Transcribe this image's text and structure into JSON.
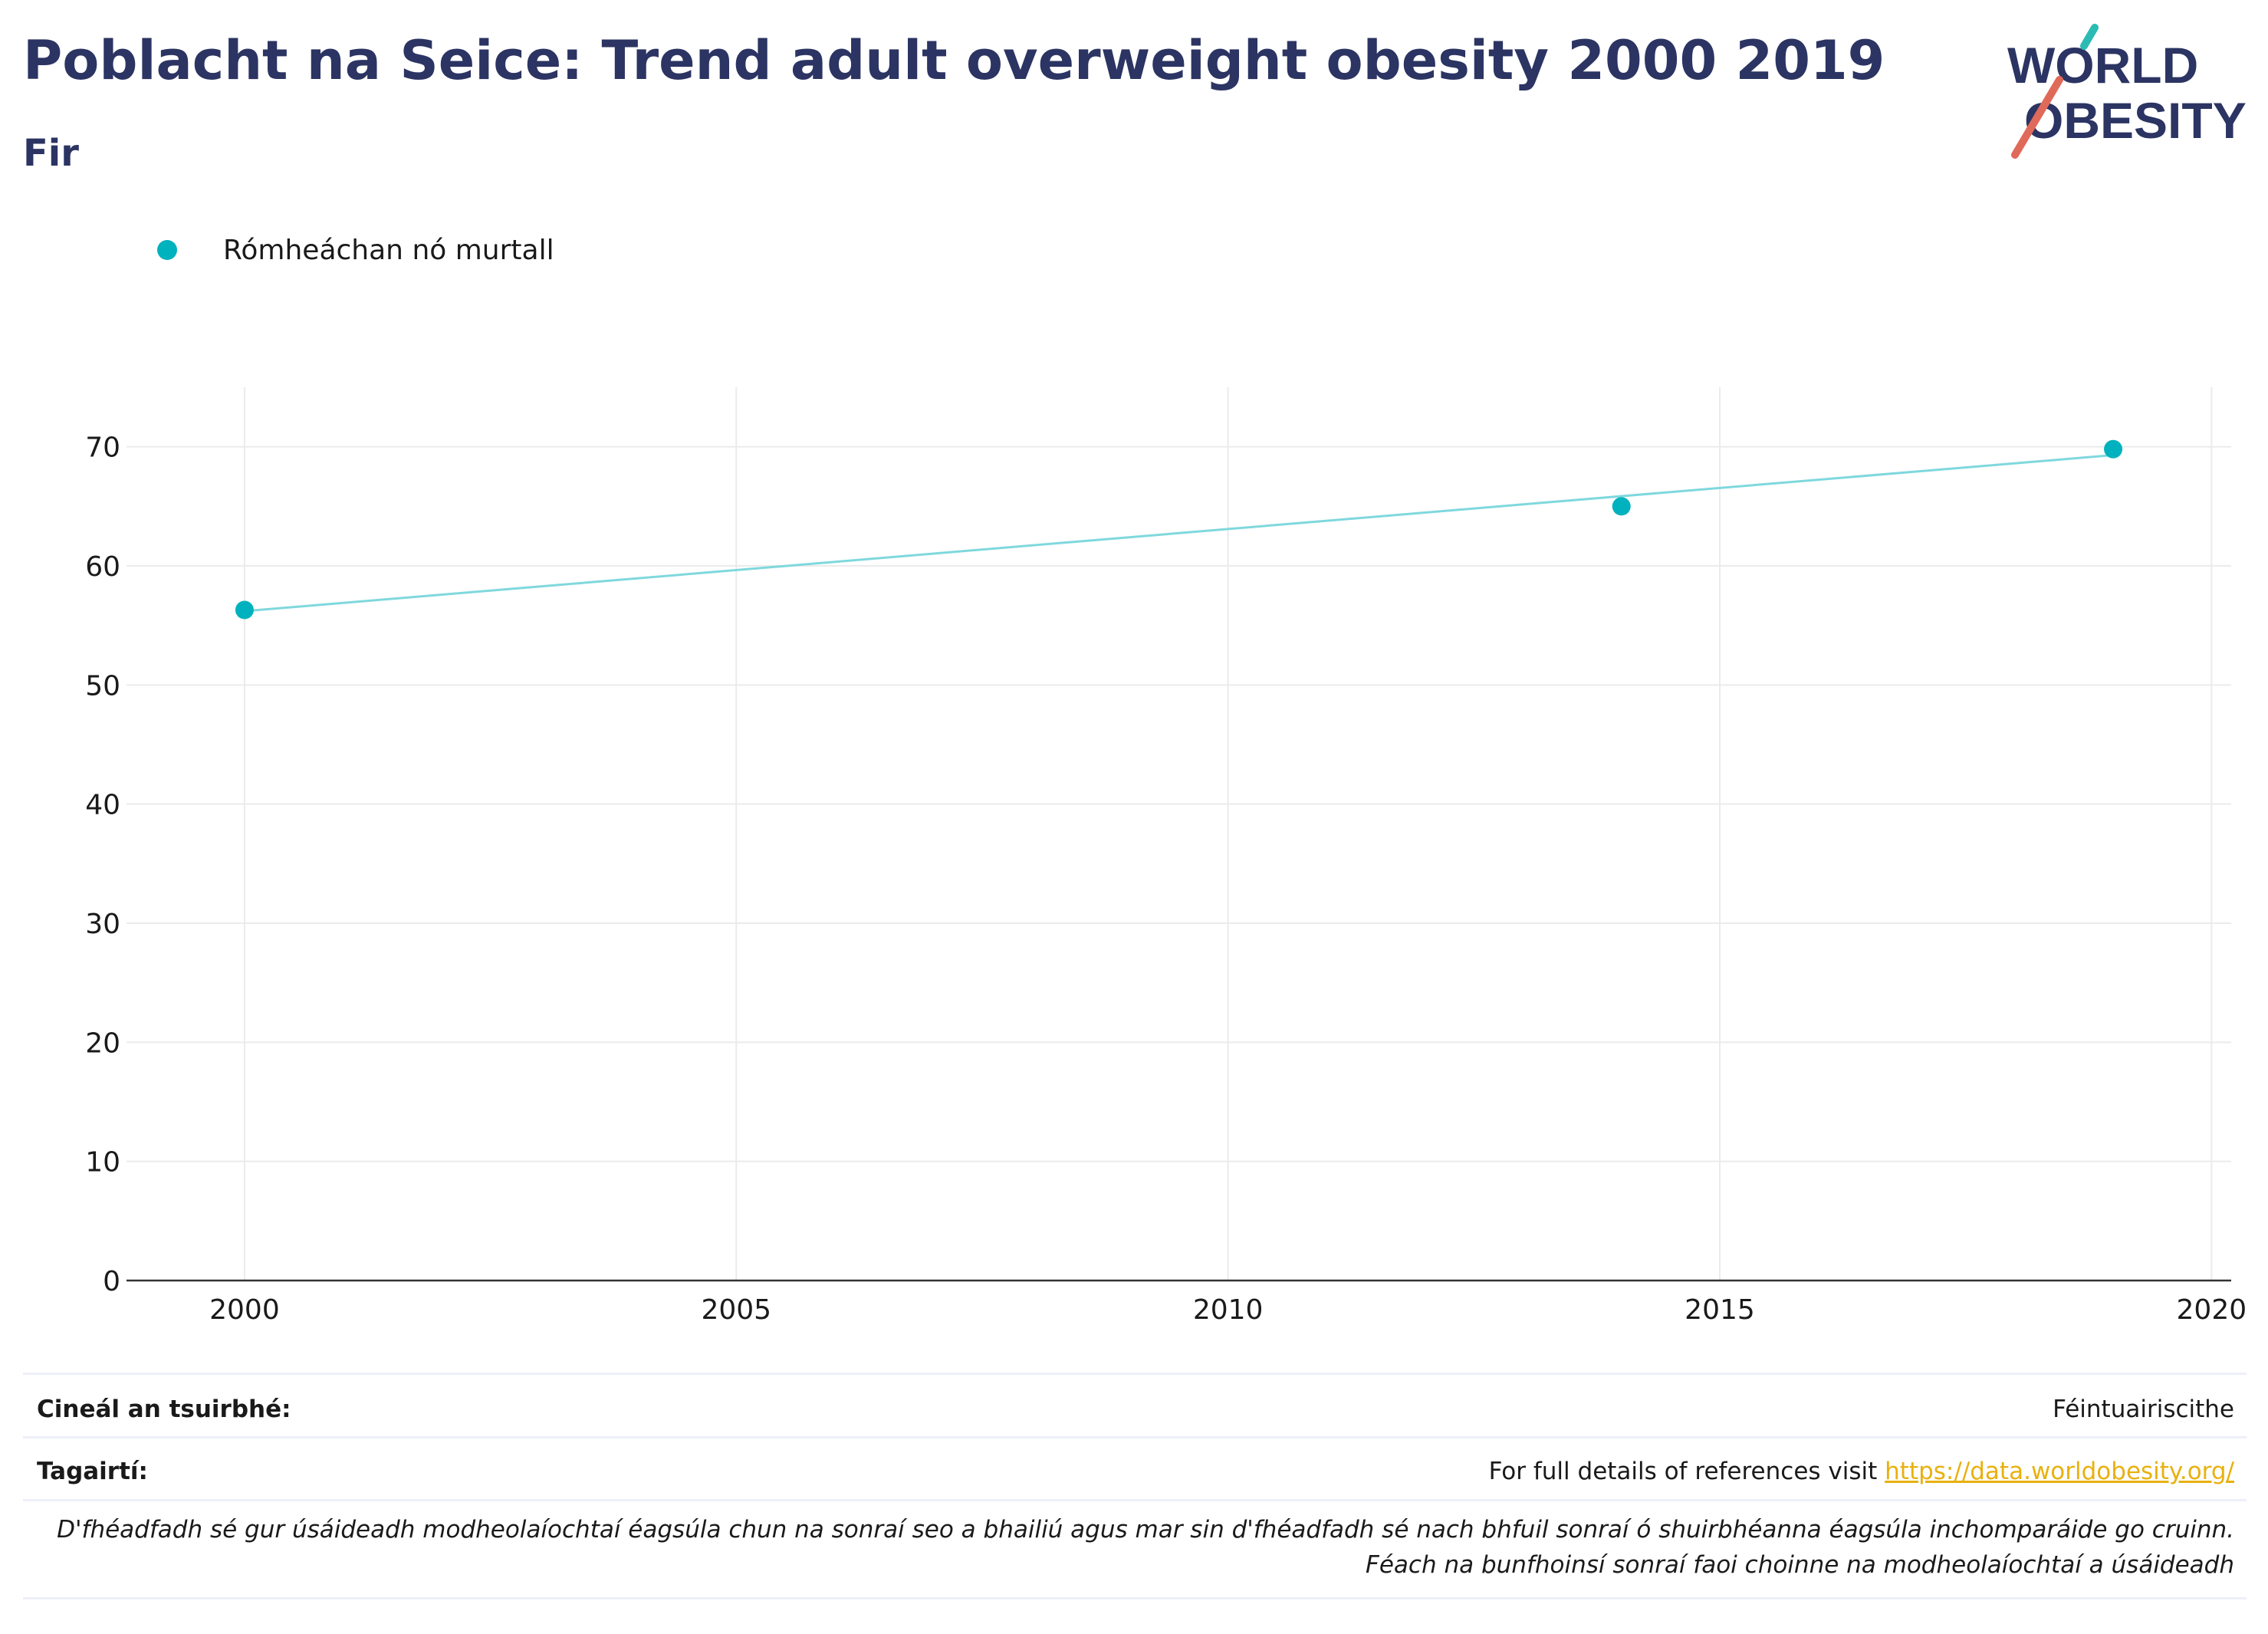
{
  "header": {
    "title": "Poblacht na Seice: Trend adult overweight obesity 2000 2019",
    "subtitle": "Fir"
  },
  "logo": {
    "line1": "WORLD",
    "line2": "OBESITY"
  },
  "colors": {
    "title": "#2b3462",
    "series": "#00b2bd",
    "trend": "#7fd8dd",
    "link": "#e8b10f",
    "logo_teal": "#2bbbb4",
    "logo_red": "#e06a5a"
  },
  "chart_data": {
    "type": "scatter",
    "legend": [
      "Rómheáchan nó murtall"
    ],
    "series": [
      {
        "name": "Rómheáchan nó murtall",
        "x": [
          2000,
          2014,
          2019
        ],
        "y": [
          56.3,
          65.0,
          69.8
        ]
      }
    ],
    "trendline": {
      "x": [
        2000,
        2019
      ],
      "y": [
        56.2,
        69.3
      ]
    },
    "xlim": [
      1998.8,
      2020.2
    ],
    "ylim": [
      0,
      75
    ],
    "xticks": [
      2000,
      2005,
      2010,
      2015,
      2020
    ],
    "yticks": [
      0,
      10,
      20,
      30,
      40,
      50,
      60,
      70
    ],
    "grid": true,
    "legend_position": "top-left"
  },
  "footer": {
    "survey_label": "Cineál an tsuirbhé:",
    "survey_value": "Féintuairiscithe",
    "refs_label": "Tagairtí:",
    "refs_text": "For full details of references visit ",
    "refs_link": "https://data.worldobesity.org/",
    "note_line1": "D'fhéadfadh sé gur úsáideadh modheolaíochtaí éagsúla chun na sonraí seo a bhailiú agus mar sin d'fhéadfadh sé nach bhfuil sonraí ó shuirbhéanna éagsúla inchomparáide go cruinn.",
    "note_line2": "Féach na bunfhoinsí sonraí faoi choinne na modheolaíochtaí a úsáideadh"
  }
}
